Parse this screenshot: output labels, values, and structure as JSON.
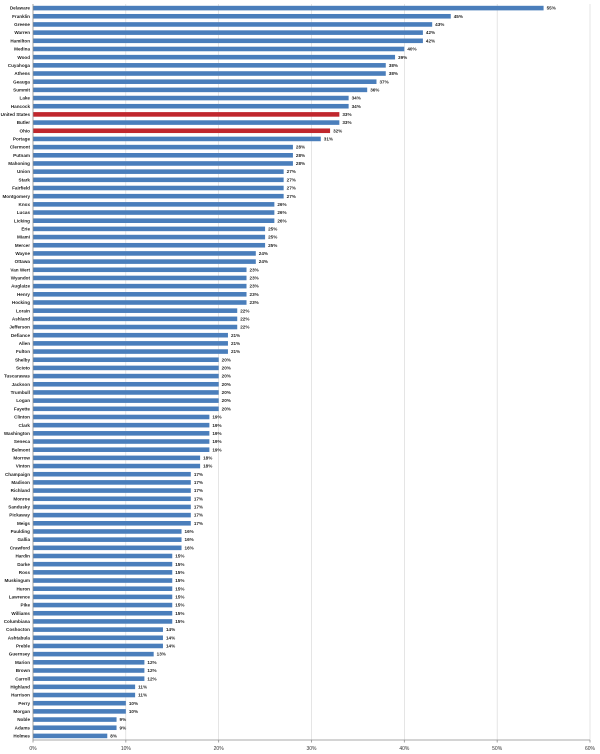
{
  "chart_data": {
    "type": "bar",
    "orientation": "horizontal",
    "categories": [
      "Delaware",
      "Franklin",
      "Greene",
      "Warren",
      "Hamilton",
      "Medina",
      "Wood",
      "Cuyahoga",
      "Athens",
      "Geauga",
      "Summit",
      "Lake",
      "Hancock",
      "United States",
      "Butler",
      "Ohio",
      "Portage",
      "Clermont",
      "Putnam",
      "Mahoning",
      "Union",
      "Stark",
      "Fairfield",
      "Montgomery",
      "Knox",
      "Lucas",
      "Licking",
      "Erie",
      "Miami",
      "Mercer",
      "Wayne",
      "Ottawa",
      "Van Wert",
      "Wyandot",
      "Auglaize",
      "Henry",
      "Hocking",
      "Lorain",
      "Ashland",
      "Jefferson",
      "Defiance",
      "Allen",
      "Fulton",
      "Shelby",
      "Scioto",
      "Tuscarawas",
      "Jackson",
      "Trumbull",
      "Logan",
      "Fayette",
      "Clinton",
      "Clark",
      "Washington",
      "Seneca",
      "Belmont",
      "Morrow",
      "Vinton",
      "Champaign",
      "Madison",
      "Richland",
      "Monroe",
      "Sandusky",
      "Pickaway",
      "Meigs",
      "Paulding",
      "Gallia",
      "Crawford",
      "Hardin",
      "Darke",
      "Ross",
      "Muskingum",
      "Huron",
      "Lawrence",
      "Pike",
      "Williams",
      "Columbiana",
      "Coshocton",
      "Ashtabula",
      "Preble",
      "Guernsey",
      "Marion",
      "Brown",
      "Carroll",
      "Highland",
      "Harrison",
      "Perry",
      "Morgan",
      "Noble",
      "Adams",
      "Holmes"
    ],
    "values": [
      55,
      45,
      43,
      42,
      42,
      40,
      39,
      38,
      38,
      37,
      36,
      34,
      34,
      33,
      33,
      32,
      31,
      28,
      28,
      28,
      27,
      27,
      27,
      27,
      26,
      26,
      26,
      25,
      25,
      25,
      24,
      24,
      23,
      23,
      23,
      23,
      23,
      22,
      22,
      22,
      21,
      21,
      21,
      20,
      20,
      20,
      20,
      20,
      20,
      20,
      19,
      19,
      19,
      19,
      19,
      18,
      18,
      17,
      17,
      17,
      17,
      17,
      17,
      17,
      16,
      16,
      16,
      15,
      15,
      15,
      15,
      15,
      15,
      15,
      15,
      15,
      14,
      14,
      14,
      13,
      12,
      12,
      12,
      11,
      11,
      10,
      10,
      9,
      9,
      8
    ],
    "value_labels": [
      "55%",
      "45%",
      "43%",
      "42%",
      "42%",
      "40%",
      "39%",
      "38%",
      "38%",
      "37%",
      "36%",
      "34%",
      "34%",
      "33%",
      "33%",
      "32%",
      "31%",
      "28%",
      "28%",
      "28%",
      "27%",
      "27%",
      "27%",
      "27%",
      "26%",
      "26%",
      "26%",
      "25%",
      "25%",
      "25%",
      "24%",
      "24%",
      "23%",
      "23%",
      "23%",
      "23%",
      "23%",
      "22%",
      "22%",
      "22%",
      "21%",
      "21%",
      "21%",
      "20%",
      "20%",
      "20%",
      "20%",
      "20%",
      "20%",
      "20%",
      "19%",
      "19%",
      "19%",
      "19%",
      "19%",
      "18%",
      "18%",
      "17%",
      "17%",
      "17%",
      "17%",
      "17%",
      "17%",
      "17%",
      "16%",
      "16%",
      "16%",
      "15%",
      "15%",
      "15%",
      "15%",
      "15%",
      "15%",
      "15%",
      "15%",
      "15%",
      "14%",
      "14%",
      "14%",
      "13%",
      "12%",
      "12%",
      "12%",
      "11%",
      "11%",
      "10%",
      "10%",
      "9%",
      "9%",
      "8%"
    ],
    "highlighted": [
      "United States",
      "Ohio"
    ],
    "xlim": [
      0,
      60
    ],
    "x_ticks": [
      "0%",
      "10%",
      "20%",
      "30%",
      "40%",
      "50%",
      "60%"
    ],
    "gridlines": true,
    "legend": "none",
    "title": "",
    "xlabel": "",
    "ylabel": ""
  },
  "colors": {
    "bar": "#4a7ebb",
    "highlight": "#c0272d",
    "grid": "#d4d4d4",
    "axis": "#8c8c8c"
  }
}
